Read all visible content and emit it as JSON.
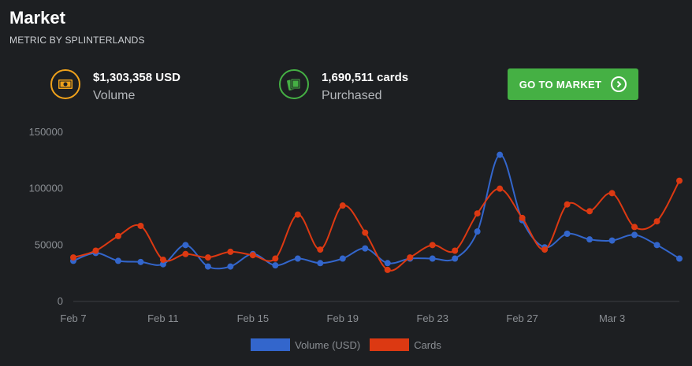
{
  "header": {
    "title": "Market",
    "subtitle": "METRIC BY SPLINTERLANDS"
  },
  "stats": [
    {
      "value": "$1,303,358 USD",
      "label": "Volume",
      "icon": "money-icon",
      "color": "#f0a21b"
    },
    {
      "value": "1,690,511 cards",
      "label": "Purchased",
      "icon": "cards-icon",
      "color": "#45b044"
    }
  ],
  "button": {
    "label": "GO TO MARKET",
    "icon": "chevron-right-circle-icon",
    "color": "#45b044"
  },
  "chart_data": {
    "type": "line",
    "x": [
      "Feb 7",
      "Feb 8",
      "Feb 9",
      "Feb 10",
      "Feb 11",
      "Feb 12",
      "Feb 13",
      "Feb 14",
      "Feb 15",
      "Feb 16",
      "Feb 17",
      "Feb 18",
      "Feb 19",
      "Feb 20",
      "Feb 21",
      "Feb 22",
      "Feb 23",
      "Feb 24",
      "Feb 25",
      "Feb 26",
      "Feb 27",
      "Feb 28",
      "Mar 1",
      "Mar 2",
      "Mar 3",
      "Mar 4",
      "Mar 5",
      "Mar 6"
    ],
    "xticks": [
      "Feb 7",
      "Feb 11",
      "Feb 15",
      "Feb 19",
      "Feb 23",
      "Feb 27",
      "Mar 3"
    ],
    "yticks": [
      "0",
      "50000",
      "100000",
      "150000"
    ],
    "ylim": [
      0,
      150000
    ],
    "grid": false,
    "legend_position": "bottom",
    "series": [
      {
        "name": "Volume (USD)",
        "color": "#3366cc",
        "values": [
          36000,
          43000,
          36000,
          35000,
          33000,
          50000,
          31000,
          31000,
          42000,
          32000,
          38000,
          34000,
          38000,
          47000,
          34000,
          38000,
          38000,
          38000,
          62000,
          130000,
          72000,
          48000,
          60000,
          55000,
          54000,
          59000,
          50000,
          38000
        ]
      },
      {
        "name": "Cards",
        "color": "#dc3912",
        "values": [
          39000,
          45000,
          58000,
          67000,
          37000,
          42000,
          39000,
          44000,
          41000,
          38000,
          77000,
          46000,
          85000,
          61000,
          28000,
          39000,
          50000,
          45000,
          78000,
          100000,
          74000,
          46000,
          86000,
          80000,
          96000,
          66000,
          71000,
          107000
        ]
      }
    ]
  }
}
